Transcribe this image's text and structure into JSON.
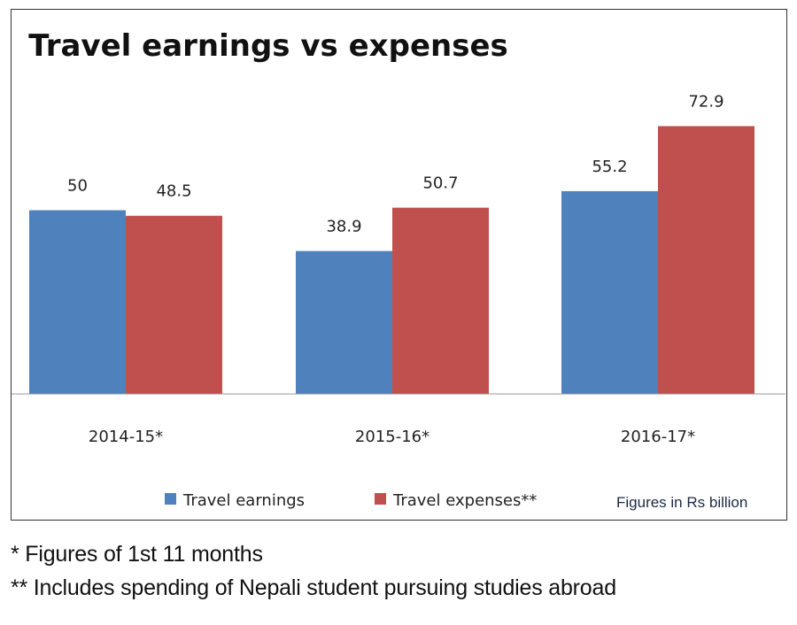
{
  "chart_data": {
    "type": "bar",
    "title": "Travel earnings vs expenses",
    "categories": [
      "2014-15*",
      "2015-16*",
      "2016-17*"
    ],
    "series": [
      {
        "name": "Travel earnings",
        "values": [
          50,
          38.9,
          55.2
        ],
        "color": "#4f81bd"
      },
      {
        "name": "Travel expenses**",
        "values": [
          48.5,
          50.7,
          72.9
        ],
        "color": "#c0504d"
      }
    ],
    "data_labels": [
      [
        "50",
        "38.9",
        "55.2"
      ],
      [
        "48.5",
        "50.7",
        "72.9"
      ]
    ],
    "ylim": [
      0,
      80
    ],
    "grid": false,
    "legend": "bottom",
    "unit_note": "Figures in Rs billion"
  },
  "footnotes": [
    "* Figures of 1st 11 months",
    "** Includes spending of Nepali student pursuing studies abroad"
  ]
}
